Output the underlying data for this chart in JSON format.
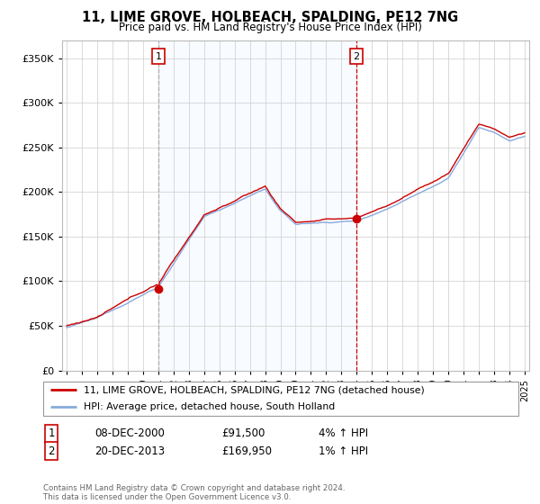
{
  "title": "11, LIME GROVE, HOLBEACH, SPALDING, PE12 7NG",
  "subtitle": "Price paid vs. HM Land Registry's House Price Index (HPI)",
  "legend_line1": "11, LIME GROVE, HOLBEACH, SPALDING, PE12 7NG (detached house)",
  "legend_line2": "HPI: Average price, detached house, South Holland",
  "annotation1": {
    "num": "1",
    "date": "08-DEC-2000",
    "price": "£91,500",
    "hpi": "4% ↑ HPI"
  },
  "annotation2": {
    "num": "2",
    "date": "20-DEC-2013",
    "price": "£169,950",
    "hpi": "1% ↑ HPI"
  },
  "footnote": "Contains HM Land Registry data © Crown copyright and database right 2024.\nThis data is licensed under the Open Government Licence v3.0.",
  "price_color": "#cc0000",
  "hpi_color": "#88aadd",
  "vline1_color": "#aaaaaa",
  "vline2_color": "#cc0000",
  "shade_color": "#ddeeff",
  "purchase_marker_color": "#cc0000",
  "background_color": "#ffffff",
  "grid_color": "#cccccc",
  "ylim": [
    0,
    370000
  ],
  "yticks": [
    0,
    50000,
    100000,
    150000,
    200000,
    250000,
    300000,
    350000
  ],
  "purchase1_x": 2001.0,
  "purchase1_y": 91500,
  "purchase2_x": 2013.97,
  "purchase2_y": 169950,
  "xlim_left": 1994.7,
  "xlim_right": 2025.3
}
